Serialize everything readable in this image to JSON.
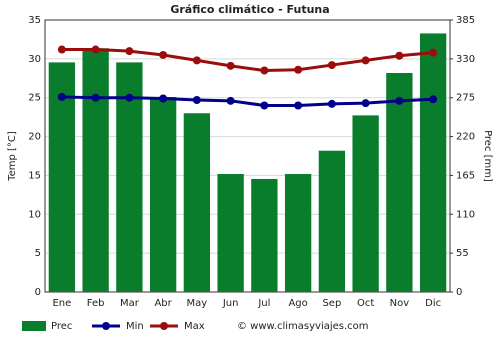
{
  "chart_data": {
    "type": "combo",
    "title": "Gráfico climático - Futuna",
    "y_label": "Temp [°C]",
    "y2_label": "Prec [mm]",
    "categories": [
      "Ene",
      "Feb",
      "Mar",
      "Abr",
      "May",
      "Jun",
      "Jul",
      "Ago",
      "Sep",
      "Oct",
      "Nov",
      "Dic"
    ],
    "ylim": [
      0,
      35
    ],
    "yticks": [
      0,
      5,
      10,
      15,
      20,
      25,
      30,
      35
    ],
    "y2lim": [
      0,
      385
    ],
    "y2ticks": [
      0,
      55,
      110,
      165,
      220,
      275,
      330,
      385
    ],
    "grid": true,
    "legend": "bottom",
    "series": [
      {
        "name": "Prec",
        "type": "bar",
        "axis": "y2",
        "color": "#0a7d2c",
        "values": [
          325,
          345,
          325,
          276,
          253,
          167,
          160,
          167,
          200,
          250,
          310,
          366
        ]
      },
      {
        "name": "Min",
        "type": "line",
        "color": "#00008b",
        "values": [
          25.1,
          25.0,
          25.0,
          24.9,
          24.7,
          24.6,
          24.0,
          24.0,
          24.2,
          24.3,
          24.6,
          24.8
        ]
      },
      {
        "name": "Max",
        "type": "line",
        "color": "#9b0d0d",
        "values": [
          31.2,
          31.2,
          31.0,
          30.5,
          29.8,
          29.1,
          28.5,
          28.6,
          29.2,
          29.8,
          30.4,
          30.8
        ]
      }
    ],
    "credit": "© www.climasyviajes.com"
  }
}
